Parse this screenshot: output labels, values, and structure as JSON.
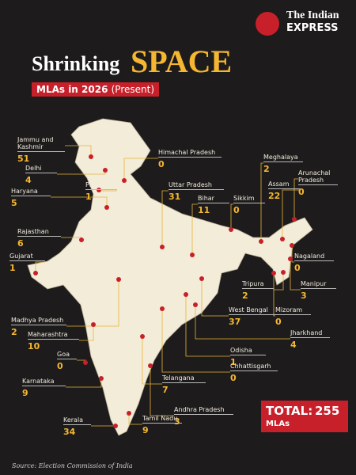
{
  "header": {
    "brand_line1": "The Indian",
    "brand_line2": "EXPRESS",
    "title_part1": "Shrinking",
    "title_part2": "SPACE",
    "subtitle": "MLAs in 2026",
    "subtitle_note": "(Present)"
  },
  "states": [
    {
      "name": "Jammu and Kashmir",
      "value": 51
    },
    {
      "name": "Delhi",
      "value": 4
    },
    {
      "name": "Himachal Pradesh",
      "value": 0
    },
    {
      "name": "Punjab",
      "value": 1
    },
    {
      "name": "Haryana",
      "value": 5
    },
    {
      "name": "Uttar Pradesh",
      "value": 31
    },
    {
      "name": "Bihar",
      "value": 11
    },
    {
      "name": "Sikkim",
      "value": 0
    },
    {
      "name": "Meghalaya",
      "value": 2
    },
    {
      "name": "Assam",
      "value": 22
    },
    {
      "name": "Arunachal Pradesh",
      "value": 0
    },
    {
      "name": "Rajasthan",
      "value": 6
    },
    {
      "name": "Gujarat",
      "value": 1
    },
    {
      "name": "Nagaland",
      "value": 0
    },
    {
      "name": "Tripura",
      "value": 2
    },
    {
      "name": "Manipur",
      "value": 3
    },
    {
      "name": "Madhya Pradesh",
      "value": 2
    },
    {
      "name": "Maharashtra",
      "value": 10
    },
    {
      "name": "West Bengal",
      "value": 37
    },
    {
      "name": "Mizoram",
      "value": 0
    },
    {
      "name": "Jharkhand",
      "value": 4
    },
    {
      "name": "Goa",
      "value": 0
    },
    {
      "name": "Odisha",
      "value": 1
    },
    {
      "name": "Chhattisgarh",
      "value": 0
    },
    {
      "name": "Telangana",
      "value": 7
    },
    {
      "name": "Karnataka",
      "value": 9
    },
    {
      "name": "Andhra Pradesh",
      "value": 3
    },
    {
      "name": "Kerala",
      "value": 34
    },
    {
      "name": "Tamil Nadu",
      "value": 9
    }
  ],
  "total": {
    "label": "TOTAL:",
    "value": 255,
    "unit": "MLAs"
  },
  "source": "Source: Election Commission of India"
}
